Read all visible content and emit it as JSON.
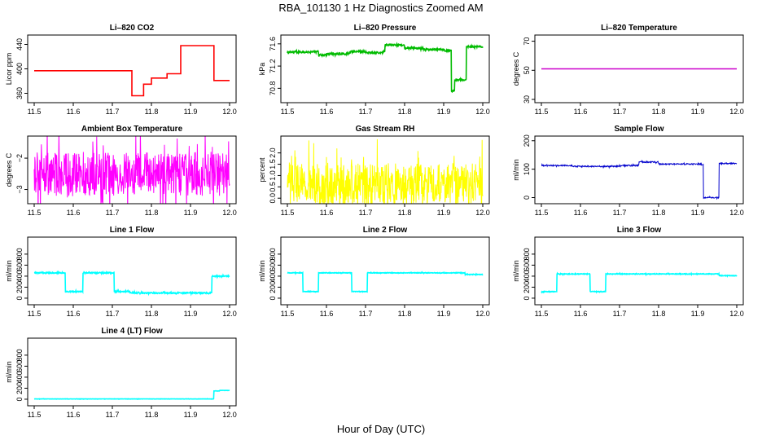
{
  "title": "RBA_101130  1 Hz Diagnostics Zoomed AM",
  "xlabel": "Hour of Day (UTC)",
  "chart_data": [
    {
      "type": "line",
      "title": "Li–820 CO2",
      "ylabel": "Licor ppm",
      "color": "#ff0000",
      "xlim": [
        11.5,
        12.0
      ],
      "ylim": [
        350,
        450
      ],
      "xticks": [
        "11.5",
        "11.6",
        "11.7",
        "11.8",
        "11.9",
        "12.0"
      ],
      "yticks": [
        "360",
        "400",
        "440"
      ],
      "ytick_values": [
        360,
        400,
        440
      ],
      "noise": 0,
      "points": [
        [
          11.5,
          397
        ],
        [
          11.75,
          397
        ],
        [
          11.75,
          356
        ],
        [
          11.78,
          356
        ],
        [
          11.78,
          375
        ],
        [
          11.8,
          375
        ],
        [
          11.8,
          385
        ],
        [
          11.84,
          385
        ],
        [
          11.84,
          392
        ],
        [
          11.875,
          392
        ],
        [
          11.875,
          438
        ],
        [
          11.96,
          438
        ],
        [
          11.96,
          381
        ],
        [
          12.0,
          381
        ]
      ]
    },
    {
      "type": "line",
      "title": "Li–820 Pressure",
      "ylabel": "kPa",
      "color": "#00bb00",
      "xlim": [
        11.5,
        12.0
      ],
      "ylim": [
        70.6,
        71.7
      ],
      "xticks": [
        "11.5",
        "11.6",
        "11.7",
        "11.8",
        "11.9",
        "12.0"
      ],
      "yticks": [
        "70.8",
        "71.2",
        "71.6"
      ],
      "ytick_values": [
        70.8,
        71.2,
        71.6
      ],
      "noise": 0.015,
      "points": [
        [
          11.5,
          71.45
        ],
        [
          11.56,
          71.46
        ],
        [
          11.58,
          71.4
        ],
        [
          11.6,
          71.42
        ],
        [
          11.66,
          71.46
        ],
        [
          11.7,
          71.44
        ],
        [
          11.745,
          71.47
        ],
        [
          11.75,
          71.58
        ],
        [
          11.8,
          71.52
        ],
        [
          11.85,
          71.5
        ],
        [
          11.9,
          71.48
        ],
        [
          11.915,
          71.49
        ],
        [
          11.92,
          70.75
        ],
        [
          11.925,
          70.75
        ],
        [
          11.928,
          70.95
        ],
        [
          11.955,
          70.95
        ],
        [
          11.958,
          71.55
        ],
        [
          12.0,
          71.53
        ]
      ]
    },
    {
      "type": "line",
      "title": "Li–820 Temperature",
      "ylabel": "degrees C",
      "color": "#cc00cc",
      "xlim": [
        11.5,
        12.0
      ],
      "ylim": [
        30,
        72
      ],
      "xticks": [
        "11.5",
        "11.6",
        "11.7",
        "11.8",
        "11.9",
        "12.0"
      ],
      "yticks": [
        "30",
        "50",
        "70"
      ],
      "ytick_values": [
        30,
        50,
        70
      ],
      "noise": 0,
      "points": [
        [
          11.5,
          51
        ],
        [
          12.0,
          51
        ]
      ]
    },
    {
      "type": "line",
      "title": "Ambient Box Temperature",
      "ylabel": "degrees C",
      "color": "#ff00ff",
      "xlim": [
        11.5,
        12.0
      ],
      "ylim": [
        -3.35,
        -1.4
      ],
      "xticks": [
        "11.5",
        "11.6",
        "11.7",
        "11.8",
        "11.9",
        "12.0"
      ],
      "yticks": [
        "−3",
        "−2"
      ],
      "ytick_values": [
        -3,
        -2
      ],
      "noise": 0.7,
      "points": [
        [
          11.5,
          -2.5
        ],
        [
          12.0,
          -2.5
        ]
      ]
    },
    {
      "type": "line",
      "title": "Gas Stream RH",
      "ylabel": "percent",
      "color": "#ffff00",
      "xlim": [
        11.5,
        12.0
      ],
      "ylim": [
        -0.1,
        2.6
      ],
      "xticks": [
        "11.5",
        "11.6",
        "11.7",
        "11.8",
        "11.9",
        "12.0"
      ],
      "yticks": [
        "0.0",
        "0.5",
        "1.0",
        "1.5",
        "2.0"
      ],
      "ytick_values": [
        0,
        0.5,
        1.0,
        1.5,
        2.0
      ],
      "noise": 0.9,
      "points": [
        [
          11.5,
          0.65
        ],
        [
          12.0,
          0.65
        ]
      ]
    },
    {
      "type": "line",
      "title": "Sample Flow",
      "ylabel": "ml/min",
      "color": "#0000cc",
      "xlim": [
        11.5,
        12.0
      ],
      "ylim": [
        -10,
        205
      ],
      "xticks": [
        "11.5",
        "11.6",
        "11.7",
        "11.8",
        "11.9",
        "12.0"
      ],
      "yticks": [
        "0",
        "100",
        "200"
      ],
      "ytick_values": [
        0,
        100,
        200
      ],
      "noise": 2,
      "points": [
        [
          11.5,
          113
        ],
        [
          11.58,
          110
        ],
        [
          11.7,
          113
        ],
        [
          11.75,
          114
        ],
        [
          11.75,
          125
        ],
        [
          11.8,
          118
        ],
        [
          11.91,
          115
        ],
        [
          11.915,
          0
        ],
        [
          11.95,
          0
        ],
        [
          11.955,
          120
        ],
        [
          12.0,
          120
        ]
      ]
    },
    {
      "type": "line",
      "title": "Line 1 Flow",
      "ylabel": "ml/min",
      "color": "#00ffff",
      "xlim": [
        11.5,
        12.0
      ],
      "ylim": [
        -60,
        1050
      ],
      "xticks": [
        "11.5",
        "11.6",
        "11.7",
        "11.8",
        "11.9",
        "12.0"
      ],
      "yticks": [
        "0",
        "200",
        "400",
        "600",
        "800"
      ],
      "ytick_values": [
        0,
        200,
        400,
        600,
        800
      ],
      "noise": 10,
      "points": [
        [
          11.5,
          460
        ],
        [
          11.58,
          460
        ],
        [
          11.58,
          120
        ],
        [
          11.625,
          120
        ],
        [
          11.625,
          460
        ],
        [
          11.705,
          460
        ],
        [
          11.705,
          120
        ],
        [
          11.745,
          120
        ],
        [
          11.745,
          95
        ],
        [
          11.955,
          95
        ],
        [
          11.955,
          400
        ],
        [
          12.0,
          400
        ]
      ]
    },
    {
      "type": "line",
      "title": "Line 2 Flow",
      "ylabel": "ml/min",
      "color": "#00ffff",
      "xlim": [
        11.5,
        12.0
      ],
      "ylim": [
        -60,
        1050
      ],
      "xticks": [
        "11.5",
        "11.6",
        "11.7",
        "11.8",
        "11.9",
        "12.0"
      ],
      "yticks": [
        "0",
        "200",
        "400",
        "600",
        "800"
      ],
      "ytick_values": [
        0,
        200,
        400,
        600,
        800
      ],
      "noise": 5,
      "points": [
        [
          11.5,
          460
        ],
        [
          11.54,
          460
        ],
        [
          11.54,
          120
        ],
        [
          11.58,
          120
        ],
        [
          11.58,
          460
        ],
        [
          11.665,
          460
        ],
        [
          11.665,
          120
        ],
        [
          11.705,
          120
        ],
        [
          11.705,
          460
        ],
        [
          11.955,
          460
        ],
        [
          11.955,
          430
        ],
        [
          12.0,
          430
        ]
      ]
    },
    {
      "type": "line",
      "title": "Line 3 Flow",
      "ylabel": "ml/min",
      "color": "#00ffff",
      "xlim": [
        11.5,
        12.0
      ],
      "ylim": [
        -60,
        1050
      ],
      "xticks": [
        "11.5",
        "11.6",
        "11.7",
        "11.8",
        "11.9",
        "12.0"
      ],
      "yticks": [
        "0",
        "200",
        "400",
        "600",
        "800"
      ],
      "ytick_values": [
        0,
        200,
        400,
        600,
        800
      ],
      "noise": 6,
      "points": [
        [
          11.5,
          120
        ],
        [
          11.54,
          120
        ],
        [
          11.54,
          440
        ],
        [
          11.625,
          440
        ],
        [
          11.625,
          120
        ],
        [
          11.665,
          120
        ],
        [
          11.665,
          440
        ],
        [
          11.955,
          440
        ],
        [
          11.955,
          410
        ],
        [
          12.0,
          410
        ]
      ]
    },
    {
      "type": "line",
      "title": "Line 4 (LT) Flow",
      "ylabel": "ml/min",
      "color": "#00ffff",
      "xlim": [
        11.5,
        12.0
      ],
      "ylim": [
        -60,
        1050
      ],
      "xticks": [
        "11.5",
        "11.6",
        "11.7",
        "11.8",
        "11.9",
        "12.0"
      ],
      "yticks": [
        "0",
        "200",
        "400",
        "600",
        "800"
      ],
      "ytick_values": [
        0,
        200,
        400,
        600,
        800
      ],
      "noise": 2,
      "points": [
        [
          11.5,
          5
        ],
        [
          11.955,
          5
        ],
        [
          11.96,
          150
        ],
        [
          11.975,
          160
        ],
        [
          12.0,
          155
        ]
      ]
    }
  ]
}
